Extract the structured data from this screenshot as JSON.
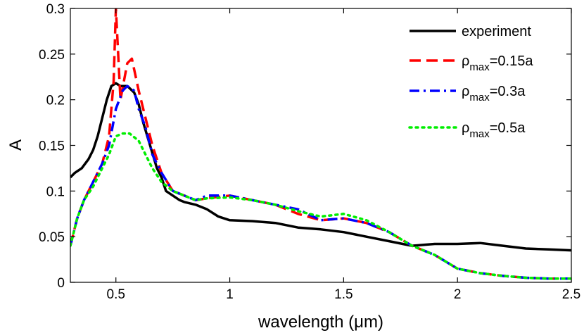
{
  "chart_data": {
    "type": "line",
    "title": "",
    "xlabel": "wavelength (μm)",
    "ylabel": "A",
    "xlim": [
      0.3,
      2.5
    ],
    "ylim": [
      0,
      0.3
    ],
    "x_ticks": [
      0.5,
      1,
      1.5,
      2,
      2.5
    ],
    "x_tick_labels": [
      "0.5",
      "1",
      "1.5",
      "2",
      "2.5"
    ],
    "y_ticks": [
      0,
      0.05,
      0.1,
      0.15,
      0.2,
      0.25,
      0.3
    ],
    "y_tick_labels": [
      "0",
      "0.05",
      "0.1",
      "0.15",
      "0.2",
      "0.25",
      "0.3"
    ],
    "grid": false,
    "legend_position": "top-right",
    "series": [
      {
        "name": "experiment",
        "legend_main": "experiment",
        "legend_sub": "",
        "legend_suffix": "",
        "color": "#000000",
        "style": "solid",
        "x": [
          0.3,
          0.32,
          0.35,
          0.38,
          0.4,
          0.42,
          0.44,
          0.46,
          0.48,
          0.5,
          0.52,
          0.55,
          0.58,
          0.6,
          0.62,
          0.65,
          0.68,
          0.7,
          0.72,
          0.75,
          0.78,
          0.8,
          0.85,
          0.9,
          0.95,
          1.0,
          1.1,
          1.2,
          1.3,
          1.4,
          1.5,
          1.6,
          1.7,
          1.8,
          1.9,
          2.0,
          2.1,
          2.2,
          2.3,
          2.4,
          2.5
        ],
        "y": [
          0.115,
          0.12,
          0.125,
          0.135,
          0.145,
          0.16,
          0.18,
          0.2,
          0.215,
          0.218,
          0.215,
          0.215,
          0.208,
          0.195,
          0.175,
          0.15,
          0.125,
          0.115,
          0.1,
          0.095,
          0.09,
          0.088,
          0.085,
          0.08,
          0.072,
          0.068,
          0.067,
          0.065,
          0.06,
          0.058,
          0.055,
          0.05,
          0.045,
          0.04,
          0.042,
          0.042,
          0.043,
          0.04,
          0.037,
          0.036,
          0.035
        ]
      },
      {
        "name": "ρmax=0.15a",
        "legend_main": "ρ",
        "legend_sub": "max",
        "legend_suffix": "=0.15a",
        "color": "#ff0000",
        "style": "dashed",
        "x": [
          0.3,
          0.33,
          0.36,
          0.4,
          0.44,
          0.47,
          0.49,
          0.5,
          0.52,
          0.55,
          0.57,
          0.6,
          0.63,
          0.66,
          0.7,
          0.75,
          0.8,
          0.85,
          0.9,
          1.0,
          1.1,
          1.2,
          1.3,
          1.4,
          1.5,
          1.6,
          1.7,
          1.8,
          1.9,
          2.0,
          2.1,
          2.2,
          2.3,
          2.4,
          2.5
        ],
        "y": [
          0.04,
          0.07,
          0.09,
          0.11,
          0.13,
          0.16,
          0.22,
          0.3,
          0.2,
          0.24,
          0.245,
          0.21,
          0.18,
          0.15,
          0.12,
          0.1,
          0.095,
          0.09,
          0.092,
          0.095,
          0.09,
          0.085,
          0.075,
          0.068,
          0.07,
          0.065,
          0.055,
          0.04,
          0.03,
          0.015,
          0.01,
          0.007,
          0.005,
          0.004,
          0.004
        ]
      },
      {
        "name": "ρmax=0.3a",
        "legend_main": "ρ",
        "legend_sub": "max",
        "legend_suffix": "=0.3a",
        "color": "#0000ff",
        "style": "dashdot",
        "x": [
          0.3,
          0.33,
          0.36,
          0.4,
          0.44,
          0.47,
          0.5,
          0.53,
          0.55,
          0.58,
          0.6,
          0.63,
          0.66,
          0.7,
          0.75,
          0.8,
          0.85,
          0.9,
          1.0,
          1.1,
          1.2,
          1.3,
          1.4,
          1.5,
          1.6,
          1.7,
          1.8,
          1.9,
          2.0,
          2.1,
          2.2,
          2.3,
          2.4,
          2.5
        ],
        "y": [
          0.04,
          0.07,
          0.09,
          0.11,
          0.13,
          0.15,
          0.19,
          0.21,
          0.215,
          0.21,
          0.19,
          0.17,
          0.14,
          0.12,
          0.1,
          0.095,
          0.09,
          0.095,
          0.095,
          0.09,
          0.085,
          0.08,
          0.068,
          0.07,
          0.065,
          0.055,
          0.04,
          0.03,
          0.015,
          0.01,
          0.007,
          0.005,
          0.004,
          0.004
        ]
      },
      {
        "name": "ρmax=0.5a",
        "legend_main": "ρ",
        "legend_sub": "max",
        "legend_suffix": "=0.5a",
        "color": "#00ee00",
        "style": "dotted",
        "x": [
          0.3,
          0.33,
          0.36,
          0.4,
          0.44,
          0.47,
          0.5,
          0.53,
          0.56,
          0.6,
          0.63,
          0.66,
          0.7,
          0.75,
          0.8,
          0.85,
          0.9,
          1.0,
          1.1,
          1.2,
          1.3,
          1.4,
          1.5,
          1.6,
          1.7,
          1.8,
          1.9,
          2.0,
          2.1,
          2.2,
          2.3,
          2.4,
          2.5
        ],
        "y": [
          0.04,
          0.07,
          0.09,
          0.105,
          0.125,
          0.14,
          0.16,
          0.163,
          0.163,
          0.155,
          0.14,
          0.125,
          0.11,
          0.1,
          0.095,
          0.09,
          0.092,
          0.093,
          0.09,
          0.085,
          0.078,
          0.072,
          0.075,
          0.068,
          0.055,
          0.04,
          0.03,
          0.015,
          0.01,
          0.007,
          0.005,
          0.004,
          0.004
        ]
      }
    ]
  }
}
